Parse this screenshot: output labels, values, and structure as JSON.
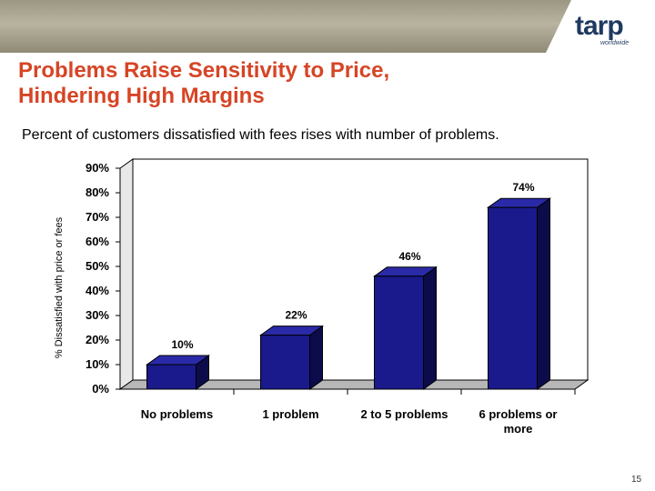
{
  "slide": {
    "title_line1": "Problems Raise Sensitivity to Price,",
    "title_line2": "Hindering High Margins",
    "subtitle": "Percent of customers dissatisfied with fees rises with number of problems.",
    "page_number": "15",
    "logo_text": "tarp",
    "logo_sub": "worldwide"
  },
  "colors": {
    "title": "#d64525",
    "bar_front": "#1a1a8c",
    "bar_side": "#0c0c4a",
    "bar_top": "#2a2aa8",
    "floor": "#b7b7b7",
    "wall": "#ffffff"
  },
  "chart_data": {
    "type": "bar",
    "title": "",
    "categories": [
      "No problems",
      "1 problem",
      "2 to 5 problems",
      "6 problems or more"
    ],
    "category_lines": [
      [
        "No problems"
      ],
      [
        "1 problem"
      ],
      [
        "2 to 5 problems"
      ],
      [
        "6 problems or",
        "more"
      ]
    ],
    "values": [
      10,
      22,
      46,
      74
    ],
    "data_labels": [
      "10%",
      "22%",
      "46%",
      "74%"
    ],
    "xlabel": "",
    "ylabel": "% Dissatisfied with price or fees",
    "ylim": [
      0,
      90
    ],
    "yticks": [
      0,
      10,
      20,
      30,
      40,
      50,
      60,
      70,
      80,
      90
    ],
    "ytick_labels": [
      "0%",
      "10%",
      "20%",
      "30%",
      "40%",
      "50%",
      "60%",
      "70%",
      "80%",
      "90%"
    ],
    "grid": false,
    "legend": "none",
    "style": "3d-column"
  }
}
